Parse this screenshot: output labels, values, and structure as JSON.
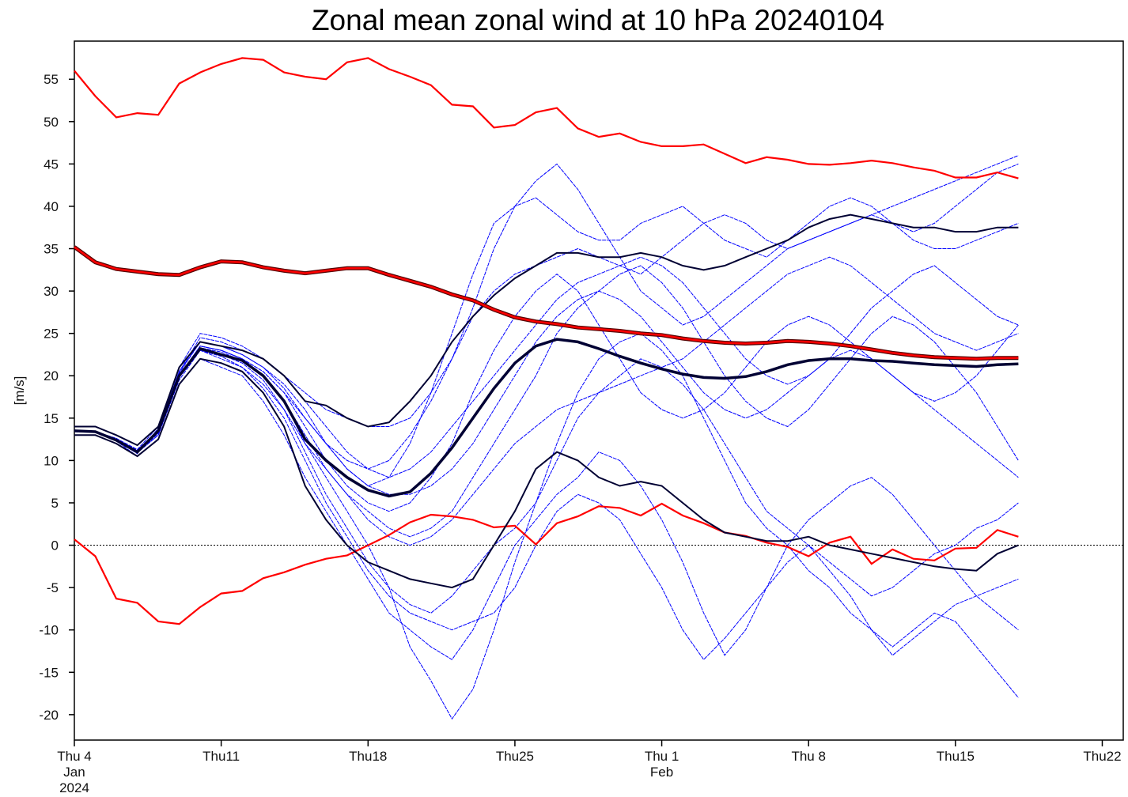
{
  "chart_data": {
    "type": "line",
    "title": "Zonal mean zonal wind at 10 hPa 20240104",
    "ylabel": "[m/s]",
    "xlabel": "",
    "x_start_date": "2024-01-04",
    "x_step": "1 day",
    "xlim_dates": [
      "2024-01-04",
      "2024-02-23"
    ],
    "ylim": [
      -23,
      59.5
    ],
    "yticks": [
      -20,
      -15,
      -10,
      -5,
      0,
      5,
      10,
      15,
      20,
      25,
      30,
      35,
      40,
      45,
      50,
      55
    ],
    "xticks": [
      {
        "date": "2024-01-04",
        "lines": [
          "Thu 4",
          "Jan",
          "2024"
        ]
      },
      {
        "date": "2024-01-11",
        "lines": [
          "Thu11"
        ]
      },
      {
        "date": "2024-01-18",
        "lines": [
          "Thu18"
        ]
      },
      {
        "date": "2024-01-25",
        "lines": [
          "Thu25"
        ]
      },
      {
        "date": "2024-02-01",
        "lines": [
          "Thu 1",
          "Feb"
        ]
      },
      {
        "date": "2024-02-08",
        "lines": [
          "Thu 8"
        ]
      },
      {
        "date": "2024-02-15",
        "lines": [
          "Thu15"
        ]
      },
      {
        "date": "2024-02-22",
        "lines": [
          "Thu22"
        ]
      }
    ],
    "grid": false,
    "zero_line": true,
    "colors": {
      "members": "#0000ff",
      "stats": "#000033",
      "red": "#ff0000"
    },
    "red_max": [
      56,
      53,
      50.5,
      51,
      50.8,
      54.5,
      55.8,
      56.8,
      57.5,
      57.3,
      55.8,
      55.3,
      55,
      57,
      57.5,
      56.2,
      55.3,
      54.3,
      52,
      51.8,
      49.3,
      49.6,
      51.1,
      51.6,
      49.2,
      48.2,
      48.6,
      47.6,
      47.1,
      47.1,
      47.3,
      46.2,
      45.1,
      45.8,
      45.5,
      45,
      44.9,
      45.1,
      45.4,
      45.1,
      44.6,
      44.2,
      43.4,
      43.4,
      44,
      43.3
    ],
    "red_min": [
      0.7,
      -1.3,
      -6.3,
      -6.8,
      -9,
      -9.3,
      -7.3,
      -5.7,
      -5.4,
      -3.9,
      -3.2,
      -2.3,
      -1.6,
      -1.2,
      0,
      1.2,
      2.7,
      3.6,
      3.4,
      3,
      2.1,
      2.3,
      0.1,
      2.6,
      3.4,
      4.6,
      4.4,
      3.5,
      4.9,
      3.5,
      2.6,
      1.5,
      1.1,
      0.3,
      -0.2,
      -1.3,
      0.3,
      1,
      -2.2,
      -0.5,
      -1.6,
      -1.8,
      -0.4,
      -0.3,
      1.8,
      1
    ],
    "red_climatology": [
      35.2,
      33.4,
      32.6,
      32.3,
      32,
      31.9,
      32.8,
      33.5,
      33.4,
      32.8,
      32.4,
      32.1,
      32.4,
      32.7,
      32.7,
      31.9,
      31.2,
      30.5,
      29.6,
      28.9,
      27.8,
      26.9,
      26.4,
      26.1,
      25.7,
      25.5,
      25.3,
      25,
      24.8,
      24.4,
      24.1,
      23.9,
      23.8,
      23.9,
      24.1,
      24,
      23.8,
      23.5,
      23.1,
      22.7,
      22.4,
      22.2,
      22.1,
      22,
      22.1,
      22.1
    ],
    "ensemble_mean": [
      13.5,
      13.4,
      12.4,
      11,
      13.5,
      20,
      23.2,
      22.5,
      21.8,
      20,
      17,
      12.5,
      10,
      8,
      6.5,
      5.8,
      6.3,
      8.5,
      11.5,
      15,
      18.5,
      21.5,
      23.5,
      24.3,
      24,
      23.2,
      22.3,
      21.5,
      20.8,
      20.2,
      19.8,
      19.7,
      19.9,
      20.5,
      21.3,
      21.8,
      22,
      22,
      21.8,
      21.7,
      21.5,
      21.3,
      21.2,
      21.1,
      21.3,
      21.4
    ],
    "ensemble_upper": [
      14,
      14,
      13,
      11.8,
      14,
      21,
      24,
      23.5,
      23,
      22,
      20,
      17,
      16.5,
      15,
      14,
      14.5,
      17,
      20,
      24,
      27,
      29.5,
      31.5,
      33,
      34.5,
      34.5,
      34,
      34,
      34.5,
      34,
      33,
      32.5,
      33,
      34,
      35,
      36,
      37.5,
      38.5,
      39,
      38.5,
      38,
      37.5,
      37.5,
      37,
      37,
      37.5,
      37.5
    ],
    "ensemble_lower": [
      13,
      13,
      12,
      10.5,
      12.5,
      19,
      22,
      21.5,
      20.5,
      18,
      14,
      7,
      3,
      0,
      -2,
      -3,
      -4,
      -4.5,
      -5,
      -4,
      0,
      4,
      9,
      11,
      10,
      8,
      7,
      7.5,
      7,
      5,
      3,
      1.5,
      1,
      0.5,
      0.5,
      1,
      0,
      -0.5,
      -1,
      -1.5,
      -2,
      -2.5,
      -2.8,
      -3,
      -1,
      0
    ],
    "members": [
      [
        13.5,
        13.4,
        12.6,
        11.2,
        13.4,
        20,
        23.5,
        23,
        22,
        20,
        17,
        12,
        8,
        4,
        0,
        -5,
        -12,
        -16,
        -20.5,
        -17,
        -10,
        -2,
        5,
        12,
        18,
        22,
        24,
        25,
        23,
        20,
        15,
        10,
        5,
        2,
        0,
        -3,
        -5,
        -8,
        -10,
        -12,
        -10,
        -8,
        -9,
        -12,
        -15,
        -18
      ],
      [
        13.5,
        13.3,
        12.4,
        10.8,
        13.8,
        20.5,
        24,
        23.5,
        22.5,
        21,
        19,
        16,
        12,
        9,
        7,
        8,
        12,
        18,
        25,
        32,
        38,
        40,
        41,
        39,
        37,
        36,
        36,
        38,
        39,
        40,
        38,
        36,
        35,
        34,
        36,
        38,
        40,
        41,
        40,
        38,
        37,
        38,
        40,
        42,
        44,
        45
      ],
      [
        13.6,
        13.4,
        12.5,
        11,
        13,
        19.5,
        23,
        22,
        21,
        19,
        16,
        12,
        9,
        6,
        4,
        2,
        1,
        2,
        4,
        8,
        12,
        16,
        20,
        25,
        28,
        30,
        32,
        33,
        31,
        28,
        24,
        20,
        17,
        15,
        14,
        16,
        19,
        22,
        25,
        27,
        26,
        24,
        21,
        18,
        14,
        10
      ],
      [
        13.4,
        13.3,
        12.3,
        10.5,
        12.5,
        19,
        22,
        21,
        20,
        17,
        13,
        8,
        4,
        0,
        -4,
        -8,
        -10,
        -12,
        -13.5,
        -10,
        -5,
        0,
        3,
        6,
        8,
        11,
        10,
        7,
        3,
        -2,
        -8,
        -13,
        -10,
        -5,
        0,
        3,
        5,
        7,
        8,
        6,
        3,
        0,
        -3,
        -6,
        -8,
        -10
      ],
      [
        13.5,
        13.4,
        12.6,
        11.3,
        14,
        21,
        25,
        24.5,
        23.5,
        22,
        20,
        18,
        16,
        15,
        14,
        14,
        15,
        18,
        22,
        27,
        30,
        32,
        33,
        34,
        35,
        34,
        33,
        32,
        34,
        36,
        38,
        39,
        38,
        36,
        35,
        36,
        37,
        38,
        39,
        38,
        36,
        35,
        35,
        36,
        37,
        38
      ],
      [
        13.5,
        13.4,
        12.5,
        11,
        13.3,
        20,
        23.5,
        23,
        22,
        20.5,
        18,
        14,
        10,
        7,
        5,
        4,
        5,
        8,
        12,
        18,
        23,
        27,
        30,
        32,
        30,
        26,
        22,
        18,
        16,
        15,
        16,
        18,
        21,
        24,
        26,
        27,
        26,
        24,
        22,
        20,
        18,
        16,
        14,
        12,
        10,
        8
      ],
      [
        13.5,
        13.3,
        12.4,
        10.9,
        13,
        19.8,
        23,
        22.5,
        21.5,
        19.5,
        16,
        11,
        6,
        2,
        -2,
        -5,
        -7,
        -8,
        -6,
        -3,
        0,
        2,
        5,
        10,
        15,
        18,
        20,
        22,
        21,
        19,
        16,
        12,
        8,
        4,
        2,
        0,
        -2,
        -4,
        -6,
        -5,
        -3,
        -1,
        0,
        2,
        3,
        5
      ],
      [
        13.5,
        13.4,
        12.6,
        11.1,
        13.5,
        20.3,
        24,
        23.5,
        22.5,
        21,
        18.5,
        15,
        12,
        10,
        9,
        10,
        13,
        17,
        22,
        28,
        35,
        40,
        43,
        45,
        42,
        38,
        34,
        30,
        28,
        26,
        27,
        29,
        31,
        33,
        35,
        36,
        37,
        38,
        39,
        40,
        41,
        42,
        43,
        44,
        45,
        46
      ],
      [
        13.5,
        13.4,
        12.5,
        11,
        13.2,
        20,
        23.3,
        22.8,
        21.8,
        20,
        17,
        13,
        9,
        6,
        3,
        1,
        0,
        1,
        3,
        6,
        9,
        12,
        14,
        16,
        17,
        18,
        19,
        20,
        21,
        22,
        24,
        26,
        28,
        30,
        32,
        33,
        34,
        33,
        31,
        29,
        27,
        25,
        24,
        23,
        24,
        25
      ],
      [
        13.5,
        13.4,
        12.5,
        11,
        13.2,
        20,
        23,
        22.3,
        21,
        18.5,
        15,
        10,
        5,
        1,
        -3,
        -6,
        -8,
        -9,
        -10,
        -9,
        -8,
        -5,
        0,
        4,
        6,
        5,
        3,
        -1,
        -5,
        -10,
        -13.5,
        -11,
        -8,
        -5,
        -2,
        0,
        -3,
        -6,
        -10,
        -13,
        -11,
        -9,
        -7,
        -6,
        -5,
        -4
      ],
      [
        13.5,
        13.4,
        12.6,
        11.2,
        13.6,
        20.5,
        24.5,
        24,
        23,
        22,
        20,
        17,
        14,
        11,
        9,
        8,
        9,
        11,
        14,
        17,
        20,
        23,
        26,
        29,
        31,
        32,
        33,
        34,
        33,
        31,
        28,
        25,
        22,
        20,
        19,
        20,
        22,
        25,
        28,
        30,
        32,
        33,
        31,
        29,
        27,
        26
      ],
      [
        13.5,
        13.4,
        12.5,
        11,
        13.3,
        20,
        23.5,
        23,
        22,
        20.5,
        18,
        15,
        12,
        9,
        7,
        6,
        6,
        7,
        9,
        12,
        16,
        20,
        24,
        27,
        29,
        30,
        29,
        27,
        24,
        21,
        18,
        16,
        15,
        16,
        18,
        20,
        22,
        23,
        22,
        20,
        18,
        17,
        18,
        20,
        23,
        26
      ]
    ]
  }
}
